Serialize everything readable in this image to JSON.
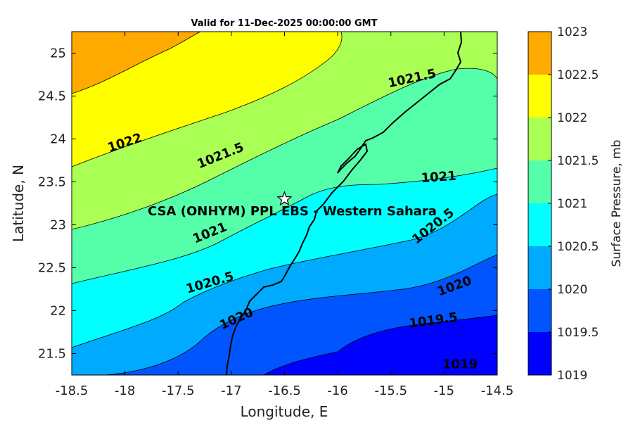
{
  "map": {
    "title": "Valid for 11-Dec-2025 00:00:00 GMT",
    "xlabel": "Longitude, E",
    "ylabel": "Latitude, N",
    "xlim": [
      -18.5,
      -14.5
    ],
    "ylim": [
      21.25,
      25.25
    ],
    "xticks": [
      -18.5,
      -18,
      -17.5,
      -17,
      -16.5,
      -16,
      -15.5,
      -15,
      -14.5
    ],
    "yticks": [
      21.5,
      22,
      22.5,
      23,
      23.5,
      24,
      24.5,
      25
    ],
    "xtick_labels": [
      "-18.5",
      "-18",
      "-17.5",
      "-17",
      "-16.5",
      "-16",
      "-15.5",
      "-15",
      "-14.5"
    ],
    "ytick_labels": [
      "21.5",
      "22",
      "22.5",
      "23",
      "23.5",
      "24",
      "24.5",
      "25"
    ],
    "station": {
      "name": "CSA (ONHYM) PPL EBS  - Western Sahara",
      "lon": -16.5,
      "lat": 23.3,
      "marker_icon": "star-icon"
    },
    "contour_labels": [
      {
        "text": "1022",
        "lon": -18.0,
        "lat": 23.95,
        "angle": -18
      },
      {
        "text": "1021.5",
        "lon": -17.1,
        "lat": 23.8,
        "angle": -22
      },
      {
        "text": "1021.5",
        "lon": -15.3,
        "lat": 24.7,
        "angle": -12
      },
      {
        "text": "1021",
        "lon": -15.05,
        "lat": 23.55,
        "angle": -4
      },
      {
        "text": "1021",
        "lon": -17.2,
        "lat": 22.9,
        "angle": -22
      },
      {
        "text": "1020.5",
        "lon": -15.1,
        "lat": 22.98,
        "angle": -38
      },
      {
        "text": "1020.5",
        "lon": -17.2,
        "lat": 22.32,
        "angle": -16
      },
      {
        "text": "1020",
        "lon": -14.9,
        "lat": 22.28,
        "angle": -20
      },
      {
        "text": "1020",
        "lon": -16.95,
        "lat": 21.9,
        "angle": -24
      },
      {
        "text": "1019.5",
        "lon": -15.1,
        "lat": 21.88,
        "angle": -8
      },
      {
        "text": "1019",
        "lon": -14.85,
        "lat": 21.37,
        "angle": 0
      }
    ],
    "colorbar": {
      "label": "Surface Pressure, mb",
      "levels": [
        1019,
        1019.5,
        1020,
        1020.5,
        1021,
        1021.5,
        1022,
        1022.5,
        1023
      ],
      "level_labels": [
        "1019",
        "1019.5",
        "1020",
        "1020.5",
        "1021",
        "1021.5",
        "1022",
        "1022.5",
        "1023"
      ],
      "colors": [
        "#0000ff",
        "#0055ff",
        "#00aaff",
        "#00ffff",
        "#55ffaa",
        "#aaff55",
        "#ffff00",
        "#ffaa00",
        "#ff5500"
      ]
    }
  }
}
